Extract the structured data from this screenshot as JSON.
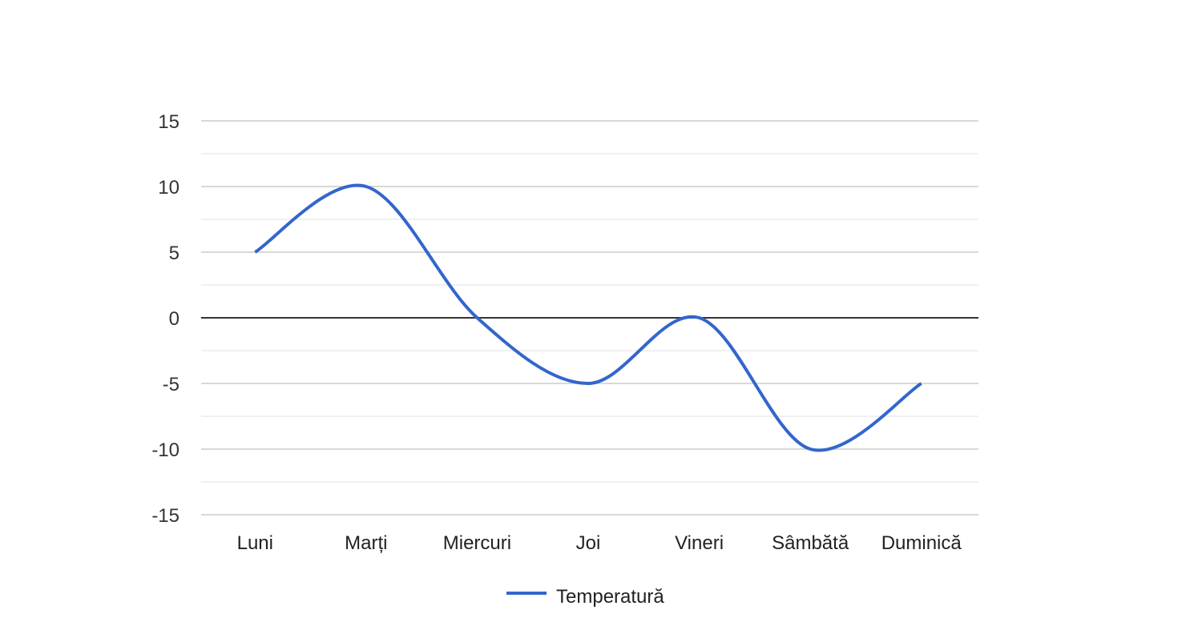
{
  "chart_data": {
    "type": "line",
    "title": "",
    "xlabel": "",
    "ylabel": "",
    "categories": [
      "Luni",
      "Marți",
      "Miercuri",
      "Joi",
      "Vineri",
      "Sâmbătă",
      "Duminică"
    ],
    "series": [
      {
        "name": "Temperatură",
        "values": [
          5,
          10,
          0,
          -5,
          0,
          -10,
          -5
        ],
        "color": "#3366cc",
        "smooth": true
      }
    ],
    "ylim": [
      -15,
      15
    ],
    "yticks": [
      15,
      10,
      5,
      0,
      -5,
      -10,
      -15
    ],
    "y_minor_step": 2.5,
    "grid": true,
    "legend": "bottom-center",
    "colors": {
      "gridline": "#cccccc",
      "minor_gridline": "#ebebeb",
      "baseline": "#333333",
      "line": "#3366cc"
    }
  }
}
